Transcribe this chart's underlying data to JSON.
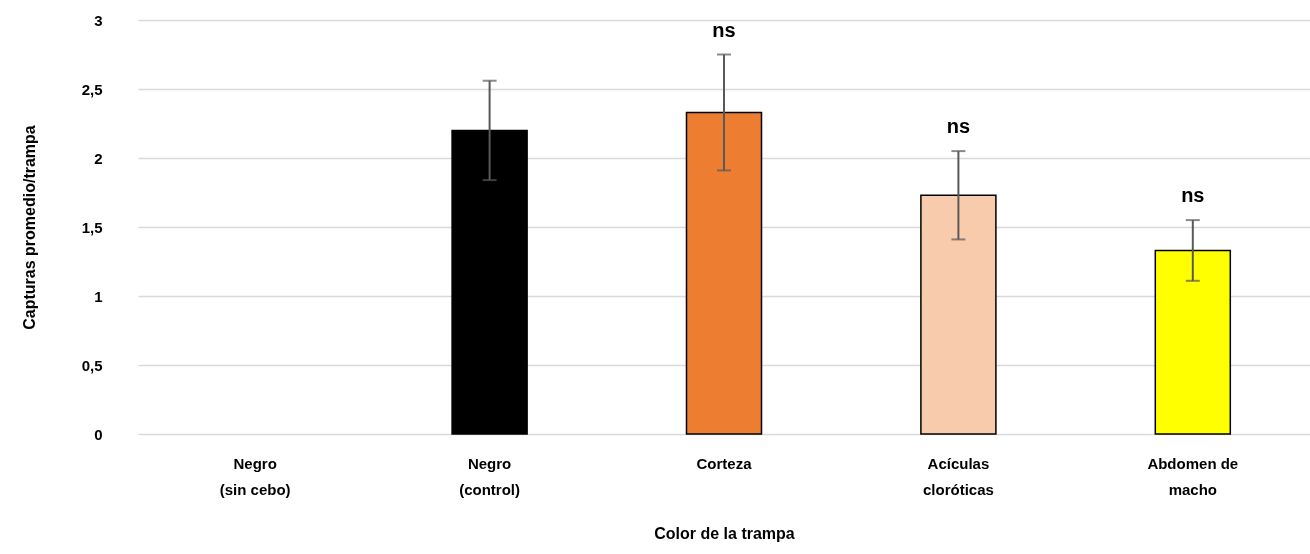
{
  "chart_data": {
    "type": "bar",
    "xlabel": "Color de la trampa",
    "ylabel": "Capturas promedio/trampa",
    "categories": [
      "Negro\n(sin cebo)",
      "Negro\n(control)",
      "Corteza",
      "Acículas\ncloróticas",
      "Abdomen de\nmacho"
    ],
    "values": [
      null,
      2.2,
      2.33,
      1.73,
      1.33
    ],
    "colors": [
      "#000000",
      "#000000",
      "#ed7d31",
      "#f8cbad",
      "#ffff00"
    ],
    "errors": [
      null,
      0.36,
      0.42,
      0.32,
      0.22
    ],
    "ylim": [
      0,
      3
    ],
    "yticks": [
      0,
      {
        "value": 0.5,
        "label": "0,5"
      },
      1,
      {
        "value": 1.5,
        "label": "1,5"
      },
      2,
      {
        "value": 2.5,
        "label": "2,5"
      },
      3
    ],
    "grid": "y",
    "annotations": [
      {
        "text": "ns",
        "x": "Corteza",
        "y": 2.75
      },
      {
        "text": "ns",
        "x": "Acículas\ncloróticas",
        "y": 2.05
      },
      {
        "text": "ns",
        "x": "Abdomen de\nmacho",
        "y": 1.55
      }
    ]
  }
}
